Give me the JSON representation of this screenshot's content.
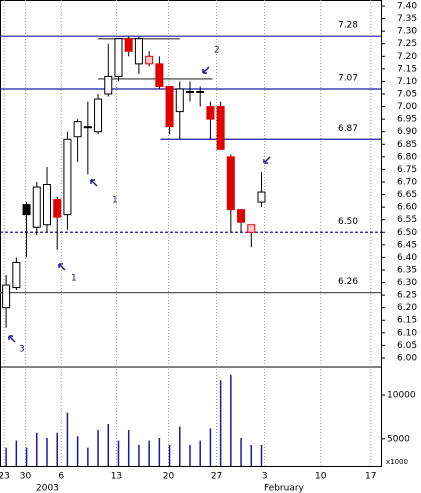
{
  "chart_data": {
    "type": "candlestick",
    "x": [
      0,
      1,
      2,
      3,
      4,
      5,
      6,
      7,
      8,
      9,
      10,
      11,
      12,
      13,
      14,
      15,
      16,
      17,
      18,
      19,
      20,
      21,
      22,
      23,
      24,
      25
    ],
    "open": [
      6.2,
      6.28,
      6.61,
      6.52,
      6.53,
      6.63,
      6.57,
      6.88,
      6.92,
      6.9,
      7.05,
      7.12,
      7.27,
      7.17,
      7.2,
      7.17,
      7.08,
      6.98,
      7.06,
      7.06,
      7.0,
      7.0,
      6.8,
      6.59,
      6.53,
      6.62
    ],
    "high": [
      6.33,
      6.4,
      6.62,
      6.7,
      6.76,
      6.64,
      6.9,
      6.95,
      7.02,
      7.05,
      7.25,
      7.27,
      7.28,
      7.28,
      7.22,
      7.2,
      7.08,
      7.1,
      7.1,
      7.08,
      7.02,
      7.02,
      6.81,
      6.59,
      6.53,
      6.74
    ],
    "low": [
      6.12,
      6.27,
      6.4,
      6.49,
      6.5,
      6.43,
      6.51,
      6.78,
      6.73,
      6.89,
      7.04,
      7.1,
      7.2,
      7.13,
      7.16,
      7.07,
      6.89,
      6.87,
      7.02,
      7.0,
      6.87,
      6.83,
      6.5,
      6.5,
      6.44,
      6.6
    ],
    "close": [
      6.29,
      6.38,
      6.57,
      6.68,
      6.69,
      6.56,
      6.87,
      6.94,
      6.92,
      7.03,
      7.12,
      7.27,
      7.22,
      7.27,
      7.17,
      7.08,
      6.92,
      7.07,
      7.06,
      7.06,
      6.95,
      6.83,
      6.59,
      6.54,
      6.5,
      6.66
    ],
    "body_colors": [
      "#fff",
      "#fff",
      "#000",
      "#fff",
      "#fff",
      "#e00000",
      "#fff",
      "#fff",
      "#000",
      "#fff",
      "#fff",
      "#fff",
      "#e00000",
      "#fff",
      "#ffc8c8",
      "#e00000",
      "#e00000",
      "#fff",
      "#000",
      "#000",
      "#e00000",
      "#e00000",
      "#e00000",
      "#e00000",
      "#ffc8c8",
      "#fff"
    ],
    "volume": [
      4000,
      4800,
      4000,
      5700,
      5100,
      5700,
      8000,
      5300,
      4000,
      6000,
      6700,
      4800,
      6000,
      4300,
      4800,
      5100,
      4300,
      6400,
      4300,
      4800,
      6200,
      11700,
      12300,
      5100,
      4300,
      4300
    ],
    "volume_color": "#1a1aa0",
    "xlim": [
      -0.6,
      36.7
    ],
    "xticks": [
      {
        "value": -0.2,
        "label": "23"
      },
      {
        "value": 1.9,
        "label": "30"
      },
      {
        "value": 5.4,
        "label": "6"
      },
      {
        "value": 10.8,
        "label": "13"
      },
      {
        "value": 15.9,
        "label": "20"
      },
      {
        "value": 20.6,
        "label": "27"
      },
      {
        "value": 25.3,
        "label": "3"
      },
      {
        "value": 30.8,
        "label": "10"
      },
      {
        "value": 35.7,
        "label": "17"
      }
    ],
    "x_period_labels": [
      "2003",
      "February"
    ],
    "ylim": [
      5.964,
      7.424
    ],
    "yticks": [
      {
        "value": 7.4,
        "label": "7.40"
      },
      7.35,
      {
        "value": 7.3,
        "label": "7.30"
      },
      7.25,
      {
        "value": 7.2,
        "label": "7.20"
      },
      7.15,
      {
        "value": 7.1,
        "label": "7.10"
      },
      7.05,
      {
        "value": 7.0,
        "label": "7.00"
      },
      6.95,
      {
        "value": 6.9,
        "label": "6.90"
      },
      6.85,
      {
        "value": 6.8,
        "label": "6.80"
      },
      6.75,
      {
        "value": 6.7,
        "label": "6.70"
      },
      6.65,
      {
        "value": 6.6,
        "label": "6.60"
      },
      6.55,
      {
        "value": 6.5,
        "label": "6.50"
      },
      6.45,
      {
        "value": 6.4,
        "label": "6.40"
      },
      6.35,
      {
        "value": 6.3,
        "label": "6.30"
      },
      6.25,
      {
        "value": 6.2,
        "label": "6.20"
      },
      6.15,
      {
        "value": 6.1,
        "label": "6.10"
      },
      6.05,
      {
        "value": 6.0,
        "label": "6.00"
      }
    ],
    "volume_ylim": [
      1900,
      13200
    ],
    "volume_ticks": [
      10000,
      5000
    ],
    "volume_unit": "x1000",
    "levels": [
      {
        "value": 7.28,
        "label": "7.28",
        "color": "#1a1aa0"
      },
      {
        "value": 7.07,
        "label": "7.07",
        "color": "#1a1aa0"
      },
      {
        "value": 6.87,
        "label": "6.87",
        "color": "#1a1aa0",
        "from": 15.1
      },
      {
        "value": 6.5,
        "label": "6.50",
        "color": "#1a1aa0",
        "dashed": true
      },
      {
        "value": 6.26,
        "label": "6.26",
        "color": "#555"
      }
    ],
    "trendlines": [
      {
        "value": 7.27,
        "from": 9,
        "to": 17
      },
      {
        "value": 7.11,
        "from": 9,
        "to": 20.2
      }
    ],
    "annotations": [
      "1",
      "1",
      "2",
      "3"
    ],
    "grid": true
  }
}
